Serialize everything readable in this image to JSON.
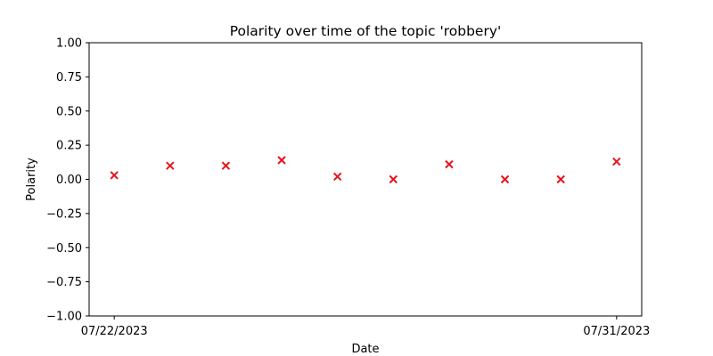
{
  "chart_data": {
    "type": "scatter",
    "title": "Polarity over time of the topic 'robbery'",
    "xlabel": "Date",
    "ylabel": "Polarity",
    "ylim": [
      -1.0,
      1.0
    ],
    "y_ticks": [
      "−1.00",
      "−0.75",
      "−0.50",
      "−0.25",
      "0.00",
      "0.25",
      "0.50",
      "0.75",
      "1.00"
    ],
    "xlim": [
      "2023-07-21T13:12",
      "2023-07-31T10:48"
    ],
    "x_ticks": [
      {
        "date": "2023-07-22",
        "label": "07/22/2023"
      },
      {
        "date": "2023-07-31",
        "label": "07/31/2023"
      }
    ],
    "marker": "x",
    "marker_color": "#e8141b",
    "grid": false,
    "legend": "none",
    "x": [
      "2023-07-22",
      "2023-07-23",
      "2023-07-24",
      "2023-07-25",
      "2023-07-26",
      "2023-07-27",
      "2023-07-28",
      "2023-07-29",
      "2023-07-30",
      "2023-07-31"
    ],
    "y": [
      0.03,
      0.1,
      0.1,
      0.14,
      0.02,
      0.0,
      0.11,
      0.0,
      0.0,
      0.13
    ]
  }
}
